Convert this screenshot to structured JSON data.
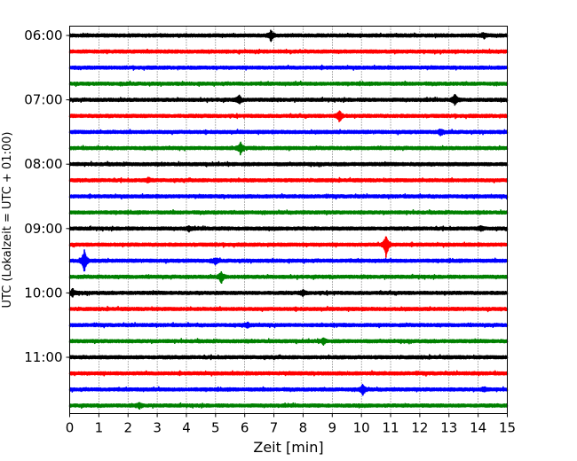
{
  "chart_data": {
    "type": "line",
    "xlabel": "Zeit  [min]",
    "ylabel": "UTC (Lokalzeit = UTC + 01:00)",
    "xlim": [
      0,
      15
    ],
    "x_ticks": [
      0,
      1,
      2,
      3,
      4,
      5,
      6,
      7,
      8,
      9,
      10,
      11,
      12,
      13,
      14,
      15
    ],
    "y_tick_labels": [
      "06:00",
      "07:00",
      "08:00",
      "09:00",
      "10:00",
      "11:00"
    ],
    "grid": "vertical dotted lines at each minute",
    "colors": [
      "#000000",
      "#ff0000",
      "#0000ff",
      "#008000"
    ],
    "traces": [
      {
        "start": "06:00",
        "color": "#000000",
        "events": [
          {
            "t": 6.9,
            "amp": 1.4
          },
          {
            "t": 14.2,
            "amp": 0.7
          }
        ]
      },
      {
        "start": "06:15",
        "color": "#ff0000",
        "events": []
      },
      {
        "start": "06:30",
        "color": "#0000ff",
        "events": []
      },
      {
        "start": "06:45",
        "color": "#008000",
        "events": []
      },
      {
        "start": "07:00",
        "color": "#000000",
        "events": [
          {
            "t": 5.8,
            "amp": 1.2
          },
          {
            "t": 13.2,
            "amp": 1.6
          }
        ]
      },
      {
        "start": "07:15",
        "color": "#ff0000",
        "events": [
          {
            "t": 9.25,
            "amp": 1.8
          }
        ]
      },
      {
        "start": "07:30",
        "color": "#0000ff",
        "events": [
          {
            "t": 12.7,
            "amp": 0.8
          }
        ]
      },
      {
        "start": "07:45",
        "color": "#008000",
        "events": [
          {
            "t": 5.85,
            "amp": 1.6
          }
        ]
      },
      {
        "start": "08:00",
        "color": "#000000",
        "events": []
      },
      {
        "start": "08:15",
        "color": "#ff0000",
        "events": [
          {
            "t": 2.7,
            "amp": 0.6
          }
        ]
      },
      {
        "start": "08:30",
        "color": "#0000ff",
        "events": []
      },
      {
        "start": "08:45",
        "color": "#008000",
        "events": []
      },
      {
        "start": "09:00",
        "color": "#000000",
        "events": [
          {
            "t": 4.1,
            "amp": 0.6
          },
          {
            "t": 14.1,
            "amp": 0.6
          }
        ]
      },
      {
        "start": "09:15",
        "color": "#ff0000",
        "events": [
          {
            "t": 10.85,
            "amp": 3.6
          }
        ]
      },
      {
        "start": "09:30",
        "color": "#0000ff",
        "events": [
          {
            "t": 0.5,
            "amp": 3.2
          },
          {
            "t": 5.0,
            "amp": 0.8
          }
        ]
      },
      {
        "start": "09:45",
        "color": "#008000",
        "events": [
          {
            "t": 5.2,
            "amp": 1.6
          }
        ]
      },
      {
        "start": "10:00",
        "color": "#000000",
        "events": [
          {
            "t": 0.1,
            "amp": 1.0
          },
          {
            "t": 8.0,
            "amp": 0.7
          }
        ]
      },
      {
        "start": "10:15",
        "color": "#ff0000",
        "events": []
      },
      {
        "start": "10:30",
        "color": "#0000ff",
        "events": [
          {
            "t": 6.1,
            "amp": 0.6
          }
        ]
      },
      {
        "start": "10:45",
        "color": "#008000",
        "events": [
          {
            "t": 8.7,
            "amp": 0.7
          }
        ]
      },
      {
        "start": "11:00",
        "color": "#000000",
        "events": []
      },
      {
        "start": "11:15",
        "color": "#ff0000",
        "events": []
      },
      {
        "start": "11:30",
        "color": "#0000ff",
        "events": [
          {
            "t": 10.05,
            "amp": 1.6
          },
          {
            "t": 14.2,
            "amp": 0.6
          }
        ]
      },
      {
        "start": "11:45",
        "color": "#008000",
        "events": [
          {
            "t": 2.4,
            "amp": 0.7
          }
        ]
      }
    ]
  }
}
